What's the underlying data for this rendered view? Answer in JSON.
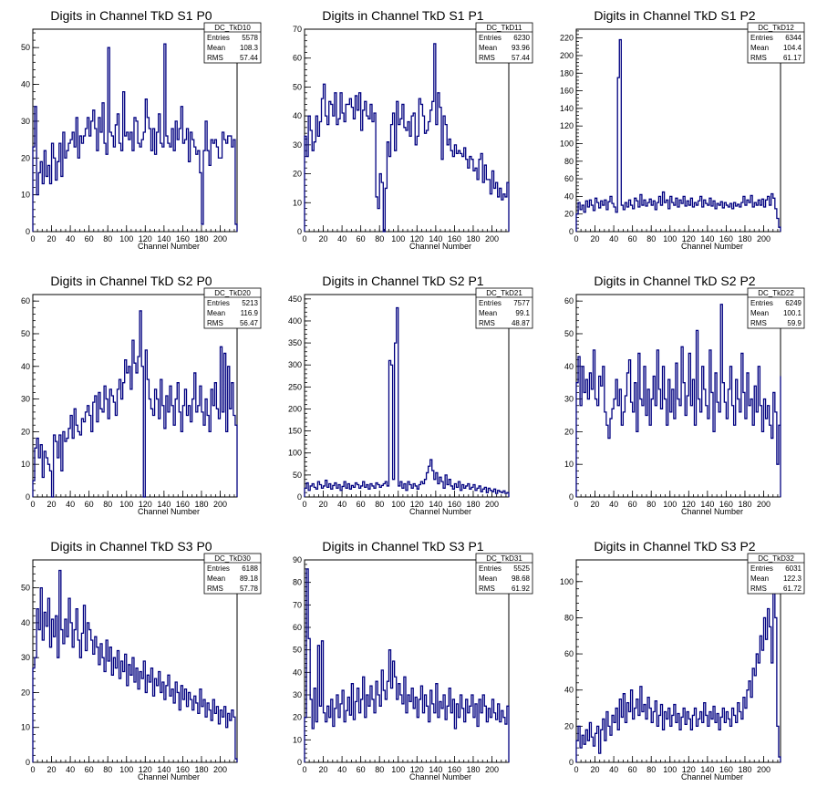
{
  "chart_data": [
    {
      "type": "histogram",
      "title": "Digits in Channel TkD S1 P0",
      "xlabel": "Channel Number",
      "xlim": [
        0,
        218
      ],
      "ylim": [
        0,
        55
      ],
      "xticks": [
        0,
        20,
        40,
        60,
        80,
        100,
        120,
        140,
        160,
        180,
        200
      ],
      "yticks": [
        0,
        10,
        20,
        30,
        40,
        50
      ],
      "stats": {
        "name": "DC_TkD10",
        "entries": "5578",
        "mean": "108.3",
        "rms": "57.44"
      },
      "bin_width": 2,
      "values": [
        23,
        34,
        10,
        16,
        19,
        13,
        22,
        15,
        18,
        13,
        24,
        20,
        14,
        19,
        24,
        15,
        27,
        20,
        22,
        24,
        25,
        27,
        23,
        31,
        20,
        26,
        24,
        26,
        28,
        31,
        26,
        30,
        33,
        28,
        22,
        31,
        27,
        35,
        24,
        21,
        50,
        27,
        26,
        23,
        29,
        32,
        24,
        22,
        38,
        26,
        27,
        25,
        27,
        22,
        31,
        30,
        24,
        23,
        25,
        27,
        36,
        31,
        28,
        22,
        28,
        21,
        27,
        32,
        24,
        23,
        51,
        26,
        24,
        23,
        28,
        22,
        30,
        25,
        28,
        34,
        24,
        25,
        28,
        19,
        27,
        25,
        23,
        21,
        22,
        16,
        2,
        22,
        30,
        22,
        18,
        25,
        24,
        25,
        23,
        20,
        20,
        27,
        25,
        24,
        26,
        26,
        23,
        25,
        2
      ]
    },
    {
      "type": "histogram",
      "title": "Digits in Channel TkD S1 P1",
      "xlabel": "Channel Number",
      "xlim": [
        0,
        218
      ],
      "ylim": [
        0,
        70
      ],
      "xticks": [
        0,
        20,
        40,
        60,
        80,
        100,
        120,
        140,
        160,
        180,
        200
      ],
      "yticks": [
        0,
        10,
        20,
        30,
        40,
        50,
        60,
        70
      ],
      "stats": {
        "name": "DC_TkD11",
        "entries": "6230",
        "mean": "93.96",
        "rms": "57.44"
      },
      "bin_width": 2,
      "values": [
        33,
        26,
        40,
        35,
        28,
        31,
        40,
        33,
        38,
        46,
        51,
        40,
        37,
        45,
        44,
        40,
        48,
        37,
        39,
        48,
        41,
        38,
        44,
        44,
        46,
        43,
        39,
        47,
        42,
        48,
        35,
        42,
        45,
        40,
        39,
        44,
        38,
        41,
        12,
        8,
        20,
        17,
        0,
        15,
        31,
        26,
        37,
        41,
        28,
        45,
        37,
        39,
        44,
        36,
        35,
        38,
        33,
        40,
        41,
        30,
        33,
        46,
        44,
        40,
        34,
        35,
        38,
        42,
        45,
        65,
        37,
        48,
        43,
        25,
        40,
        37,
        30,
        32,
        28,
        26,
        30,
        27,
        28,
        27,
        26,
        29,
        25,
        22,
        26,
        25,
        21,
        22,
        18,
        25,
        27,
        17,
        23,
        18,
        18,
        13,
        21,
        15,
        17,
        12,
        15,
        11,
        13,
        12,
        17,
        16
      ]
    },
    {
      "type": "histogram",
      "title": "Digits in Channel TkD S1 P2",
      "xlabel": "Channel Number",
      "xlim": [
        0,
        218
      ],
      "ylim": [
        0,
        230
      ],
      "xticks": [
        0,
        20,
        40,
        60,
        80,
        100,
        120,
        140,
        160,
        180,
        200
      ],
      "yticks": [
        0,
        20,
        40,
        60,
        80,
        100,
        120,
        140,
        160,
        180,
        200,
        220
      ],
      "stats": {
        "name": "DC_TkD12",
        "entries": "6344",
        "mean": "104.4",
        "rms": "61.17"
      },
      "bin_width": 2,
      "values": [
        20,
        33,
        25,
        30,
        22,
        35,
        28,
        36,
        30,
        24,
        38,
        33,
        27,
        35,
        30,
        36,
        25,
        34,
        40,
        32,
        28,
        22,
        175,
        218,
        30,
        25,
        33,
        28,
        36,
        30,
        26,
        38,
        35,
        28,
        42,
        30,
        36,
        29,
        33,
        37,
        30,
        35,
        25,
        33,
        40,
        30,
        45,
        33,
        36,
        26,
        40,
        33,
        30,
        38,
        28,
        36,
        32,
        40,
        29,
        35,
        30,
        38,
        28,
        33,
        30,
        35,
        40,
        28,
        36,
        32,
        30,
        38,
        29,
        35,
        26,
        32,
        30,
        34,
        27,
        33,
        30,
        28,
        32,
        26,
        33,
        29,
        31,
        28,
        33,
        40,
        30,
        36,
        33,
        41,
        28,
        33,
        30,
        36,
        30,
        37,
        28,
        36,
        40,
        30,
        43,
        38,
        26,
        15,
        5
      ]
    },
    {
      "type": "histogram",
      "title": "Digits in Channel TkD S2 P0",
      "xlabel": "Channel Number",
      "xlim": [
        0,
        218
      ],
      "ylim": [
        0,
        62
      ],
      "xticks": [
        0,
        20,
        40,
        60,
        80,
        100,
        120,
        140,
        160,
        180,
        200
      ],
      "yticks": [
        0,
        10,
        20,
        30,
        40,
        50,
        60
      ],
      "stats": {
        "name": "DC_TkD20",
        "entries": "5213",
        "mean": "116.9",
        "rms": "56.47"
      },
      "bin_width": 2,
      "values": [
        5,
        15,
        18,
        12,
        16,
        6,
        14,
        12,
        10,
        8,
        0,
        19,
        17,
        12,
        19,
        8,
        20,
        17,
        18,
        21,
        25,
        18,
        27,
        22,
        20,
        19,
        24,
        23,
        26,
        28,
        25,
        20,
        29,
        31,
        23,
        32,
        27,
        26,
        34,
        30,
        24,
        33,
        31,
        29,
        25,
        33,
        36,
        30,
        35,
        42,
        38,
        40,
        33,
        48,
        41,
        38,
        43,
        57,
        40,
        0,
        45,
        36,
        30,
        27,
        25,
        33,
        30,
        24,
        36,
        28,
        21,
        31,
        26,
        34,
        28,
        22,
        30,
        35,
        26,
        20,
        28,
        33,
        25,
        28,
        23,
        30,
        38,
        26,
        28,
        34,
        26,
        22,
        30,
        25,
        20,
        33,
        28,
        35,
        27,
        24,
        46,
        26,
        44,
        20,
        40,
        27,
        35,
        25,
        22,
        16
      ]
    },
    {
      "type": "histogram",
      "title": "Digits in Channel TkD S2 P1",
      "xlabel": "Channel Number",
      "xlim": [
        0,
        218
      ],
      "ylim": [
        0,
        460
      ],
      "xticks": [
        0,
        20,
        40,
        60,
        80,
        100,
        120,
        140,
        160,
        180,
        200
      ],
      "yticks": [
        0,
        50,
        100,
        150,
        200,
        250,
        300,
        350,
        400,
        450
      ],
      "stats": {
        "name": "DC_TkD21",
        "entries": "7577",
        "mean": "99.1",
        "rms": "48.87"
      },
      "bin_width": 2,
      "values": [
        20,
        32,
        15,
        25,
        30,
        22,
        18,
        35,
        28,
        20,
        25,
        38,
        22,
        30,
        18,
        26,
        32,
        20,
        28,
        15,
        24,
        35,
        20,
        30,
        18,
        26,
        22,
        32,
        28,
        20,
        25,
        35,
        22,
        28,
        18,
        30,
        25,
        20,
        32,
        28,
        22,
        26,
        30,
        35,
        25,
        310,
        300,
        40,
        350,
        430,
        25,
        35,
        20,
        30,
        15,
        35,
        28,
        20,
        30,
        25,
        18,
        28,
        35,
        30,
        40,
        55,
        70,
        85,
        60,
        40,
        55,
        30,
        45,
        35,
        20,
        50,
        28,
        40,
        25,
        18,
        30,
        22,
        35,
        15,
        28,
        20,
        25,
        30,
        18,
        22,
        28,
        15,
        20,
        25,
        12,
        18,
        22,
        10,
        20,
        15,
        12,
        18,
        8,
        15,
        12,
        10,
        14,
        8,
        10,
        5
      ]
    },
    {
      "type": "histogram",
      "title": "Digits in Channel TkD S2 P2",
      "xlabel": "Channel Number",
      "xlim": [
        0,
        218
      ],
      "ylim": [
        0,
        62
      ],
      "xticks": [
        0,
        20,
        40,
        60,
        80,
        100,
        120,
        140,
        160,
        180,
        200
      ],
      "yticks": [
        0,
        10,
        20,
        30,
        40,
        50,
        60
      ],
      "stats": {
        "name": "DC_TkD22",
        "entries": "6249",
        "mean": "100.1",
        "rms": "59.9"
      },
      "bin_width": 2,
      "values": [
        35,
        43,
        28,
        40,
        32,
        36,
        30,
        38,
        33,
        45,
        30,
        28,
        37,
        34,
        40,
        26,
        22,
        18,
        24,
        27,
        30,
        36,
        28,
        33,
        22,
        26,
        31,
        38,
        42,
        29,
        26,
        35,
        20,
        44,
        30,
        28,
        40,
        25,
        33,
        22,
        30,
        37,
        28,
        45,
        33,
        27,
        40,
        30,
        22,
        36,
        26,
        33,
        24,
        41,
        30,
        28,
        46,
        35,
        25,
        31,
        44,
        28,
        36,
        22,
        51,
        30,
        26,
        40,
        33,
        28,
        24,
        45,
        32,
        20,
        38,
        29,
        26,
        59,
        35,
        29,
        24,
        33,
        40,
        28,
        22,
        36,
        30,
        26,
        44,
        32,
        24,
        38,
        28,
        30,
        22,
        34,
        26,
        40,
        28,
        20,
        30,
        24,
        28,
        22,
        18,
        32,
        26,
        10,
        22,
        37
      ]
    },
    {
      "type": "histogram",
      "title": "Digits in Channel TkD S3 P0",
      "xlabel": "Channel Number",
      "xlim": [
        0,
        218
      ],
      "ylim": [
        0,
        58
      ],
      "xticks": [
        0,
        20,
        40,
        60,
        80,
        100,
        120,
        140,
        160,
        180,
        200
      ],
      "yticks": [
        0,
        10,
        20,
        30,
        40,
        50
      ],
      "stats": {
        "name": "DC_TkD30",
        "entries": "6188",
        "mean": "89.18",
        "rms": "57.78"
      },
      "bin_width": 2,
      "values": [
        27,
        30,
        44,
        38,
        50,
        35,
        43,
        39,
        47,
        33,
        41,
        36,
        42,
        30,
        55,
        38,
        34,
        41,
        36,
        47,
        40,
        33,
        38,
        44,
        35,
        30,
        37,
        45,
        32,
        40,
        38,
        35,
        31,
        36,
        33,
        28,
        34,
        30,
        26,
        35,
        29,
        33,
        25,
        30,
        27,
        32,
        24,
        29,
        26,
        31,
        22,
        28,
        25,
        30,
        23,
        27,
        21,
        26,
        24,
        29,
        20,
        25,
        23,
        27,
        19,
        24,
        22,
        26,
        20,
        23,
        18,
        22,
        25,
        19,
        21,
        17,
        23,
        20,
        15,
        22,
        18,
        21,
        16,
        20,
        18,
        15,
        19,
        17,
        14,
        21,
        16,
        18,
        13,
        17,
        15,
        12,
        18,
        14,
        16,
        11,
        15,
        13,
        16,
        10,
        14,
        12,
        15,
        13,
        1
      ]
    },
    {
      "type": "histogram",
      "title": "Digits in Channel TkD S3 P1",
      "xlabel": "Channel Number",
      "xlim": [
        0,
        218
      ],
      "ylim": [
        0,
        90
      ],
      "xticks": [
        0,
        20,
        40,
        60,
        80,
        100,
        120,
        140,
        160,
        180,
        200
      ],
      "yticks": [
        0,
        10,
        20,
        30,
        40,
        50,
        60,
        70,
        80,
        90
      ],
      "stats": {
        "name": "DC_TkD31",
        "entries": "5525",
        "mean": "98.68",
        "rms": "61.92"
      },
      "bin_width": 2,
      "values": [
        20,
        86,
        55,
        28,
        15,
        33,
        18,
        52,
        25,
        54,
        22,
        18,
        25,
        20,
        28,
        16,
        24,
        30,
        20,
        26,
        32,
        18,
        23,
        29,
        21,
        35,
        19,
        27,
        33,
        22,
        28,
        38,
        20,
        30,
        25,
        34,
        28,
        22,
        36,
        30,
        25,
        41,
        32,
        28,
        36,
        50,
        33,
        45,
        38,
        28,
        35,
        30,
        26,
        38,
        22,
        30,
        27,
        33,
        24,
        29,
        20,
        28,
        34,
        22,
        30,
        25,
        18,
        32,
        26,
        22,
        35,
        20,
        27,
        24,
        30,
        19,
        25,
        33,
        22,
        28,
        15,
        26,
        20,
        30,
        24,
        18,
        28,
        22,
        25,
        30,
        20,
        26,
        16,
        28,
        22,
        30,
        25,
        18,
        24,
        20,
        28,
        22,
        19,
        26,
        18,
        23,
        20,
        17,
        25,
        19
      ]
    },
    {
      "type": "histogram",
      "title": "Digits in Channel TkD S3 P2",
      "xlabel": "Channel Number",
      "xlim": [
        0,
        218
      ],
      "ylim": [
        0,
        112
      ],
      "xticks": [
        0,
        20,
        40,
        60,
        80,
        100,
        120,
        140,
        160,
        180,
        200
      ],
      "yticks": [
        0,
        20,
        40,
        60,
        80,
        100
      ],
      "stats": {
        "name": "DC_TkD32",
        "entries": "6031",
        "mean": "122.3",
        "rms": "61.72"
      },
      "bin_width": 2,
      "values": [
        12,
        20,
        8,
        15,
        10,
        18,
        12,
        22,
        14,
        9,
        16,
        20,
        5,
        18,
        24,
        12,
        28,
        20,
        15,
        26,
        22,
        30,
        18,
        35,
        25,
        38,
        22,
        33,
        28,
        40,
        24,
        30,
        35,
        26,
        42,
        28,
        32,
        24,
        36,
        30,
        22,
        28,
        34,
        20,
        26,
        32,
        18,
        28,
        24,
        30,
        20,
        26,
        32,
        22,
        27,
        18,
        25,
        30,
        21,
        28,
        24,
        18,
        26,
        30,
        20,
        24,
        28,
        22,
        33,
        26,
        20,
        28,
        24,
        31,
        22,
        27,
        18,
        25,
        30,
        22,
        28,
        24,
        20,
        30,
        26,
        22,
        33,
        28,
        24,
        36,
        30,
        40,
        45,
        36,
        52,
        48,
        60,
        55,
        70,
        62,
        80,
        68,
        85,
        75,
        55,
        95,
        80,
        20,
        3
      ]
    }
  ]
}
